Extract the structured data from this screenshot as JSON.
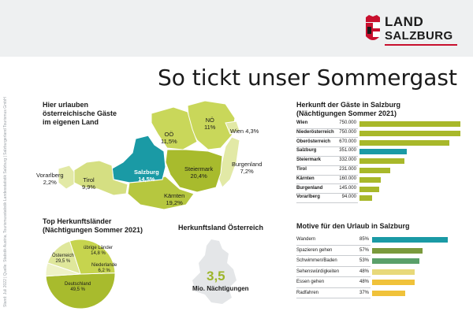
{
  "logo": {
    "line1": "LAND",
    "line2": "SALZBURG"
  },
  "title": "So tickt unser Sommergast",
  "side_note": "Stand: Juli 2022 | Quelle: Statistik Austria, Tourismusstatistik Landesstatistik Salzburg | Salzburgerland Tourismus GmbH",
  "map": {
    "heading": [
      "Hier urlauben",
      "österreichische Gäste",
      "im eigenen Land"
    ],
    "regions": [
      {
        "name": "NÖ",
        "value": "11%",
        "color": "#c9d75a"
      },
      {
        "name": "Wien",
        "value": "4,3%",
        "color": "#e2e9a6"
      },
      {
        "name": "OÖ",
        "value": "11,5%",
        "color": "#c9d75a"
      },
      {
        "name": "Burgenland",
        "value": "7,2%",
        "color": "#e2e9a6"
      },
      {
        "name": "Steiermark",
        "value": "20,4%",
        "color": "#a8bb2d"
      },
      {
        "name": "Kärnten",
        "value": "19,2%",
        "color": "#b6c73f"
      },
      {
        "name": "Salzburg",
        "value": "14,5%",
        "color": "#1a9aa5"
      },
      {
        "name": "Tirol",
        "value": "9,9%",
        "color": "#d5df82"
      },
      {
        "name": "Vorarlberg",
        "value": "2,2%",
        "color": "#e2e9a6"
      }
    ]
  },
  "chart_data": [
    {
      "type": "bar",
      "title": "Herkunft der Gäste in Salzburg",
      "subtitle": "(Nächtigungen Sommer 2021)",
      "categories": [
        "Wien",
        "Niederösterreich",
        "Oberösterreich",
        "Salzburg",
        "Steiermark",
        "Tirol",
        "Kärnten",
        "Burgenland",
        "Vorarlberg"
      ],
      "labels": [
        "750.000",
        "750.000",
        "670.000",
        "351.000",
        "332.000",
        "231.000",
        "160.000",
        "145.000",
        "94.000"
      ],
      "values": [
        750000,
        750000,
        670000,
        351000,
        332000,
        231000,
        160000,
        145000,
        94000
      ],
      "highlight": "Salzburg",
      "colors": {
        "bar": "#a8b82a",
        "highlight": "#1a9aa5"
      }
    },
    {
      "type": "bar",
      "title": "Motive für den Urlaub in Salzburg",
      "categories": [
        "Wandern",
        "Spazieren gehen",
        "Schwimmen/Baden",
        "Sehenswürdigkeiten",
        "Essen gehen",
        "Radfahren"
      ],
      "labels": [
        "85%",
        "57%",
        "53%",
        "48%",
        "48%",
        "37%"
      ],
      "values": [
        85,
        57,
        53,
        48,
        48,
        37
      ],
      "colors": [
        "#1a9aa5",
        "#7a9a3c",
        "#5aa06a",
        "#e8d97a",
        "#f0c23a",
        "#f0c23a"
      ]
    },
    {
      "type": "pie",
      "title": "Top Herkunftsländer",
      "subtitle": "(Nächtigungen Sommer 2021)",
      "slices": [
        {
          "name": "Deutschland",
          "value": 49.5,
          "label": "49,5 %",
          "color": "#a8bb2d"
        },
        {
          "name": "Österreich",
          "value": 29.5,
          "label": "29,5 %",
          "color": "#c6d44e"
        },
        {
          "name": "übrige Länder",
          "value": 14.8,
          "label": "14,8 %",
          "color": "#dfe79b"
        },
        {
          "name": "Niederlande",
          "value": 6.2,
          "label": "6,2 %",
          "color": "#eef2c6"
        }
      ]
    }
  ],
  "austria_box": {
    "heading": "Herkunftsland Österreich",
    "value": "3,5",
    "caption": "Mio. Nächtigungen"
  }
}
